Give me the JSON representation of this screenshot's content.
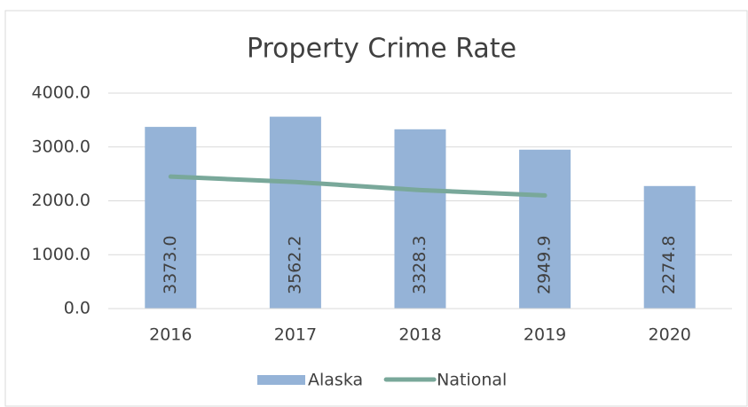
{
  "chart_data": {
    "type": "bar",
    "title": "Property Crime Rate",
    "categories": [
      "2016",
      "2017",
      "2018",
      "2019",
      "2020"
    ],
    "series": [
      {
        "name": "Alaska",
        "type": "bar",
        "color": "#95b3d7",
        "values": [
          3373.0,
          3562.2,
          3328.3,
          2949.9,
          2274.8
        ],
        "value_labels": [
          "3373.0",
          "3562.2",
          "3328.3",
          "2949.9",
          "2274.8"
        ]
      },
      {
        "name": "National",
        "type": "line",
        "color": "#79a89a",
        "values": [
          2450,
          2350,
          2200,
          2100,
          null
        ]
      }
    ],
    "ylim": [
      0,
      4000
    ],
    "yticks": [
      {
        "value": 0,
        "label": "0.0"
      },
      {
        "value": 1000,
        "label": "1000.0"
      },
      {
        "value": 2000,
        "label": "2000.0"
      },
      {
        "value": 3000,
        "label": "3000.0"
      },
      {
        "value": 4000,
        "label": "4000.0"
      }
    ],
    "grid": true,
    "legend": "bottom"
  }
}
